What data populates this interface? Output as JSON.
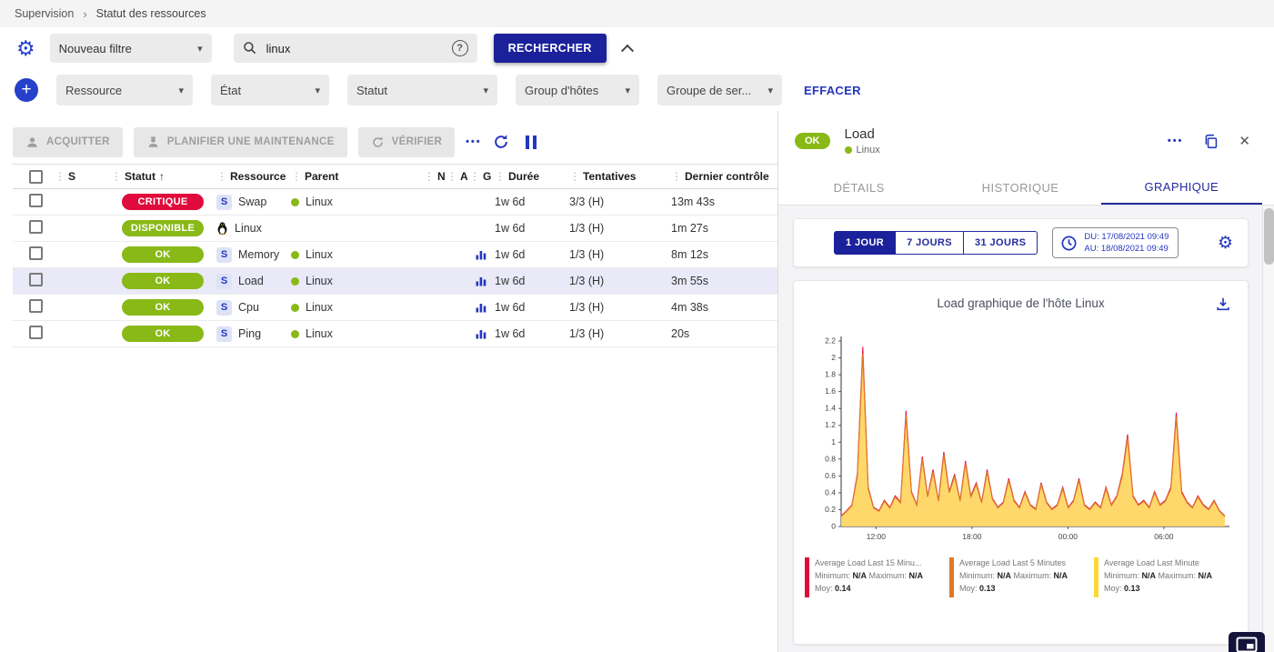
{
  "colors": {
    "primary": "#1b219b",
    "accent": "#2336c0",
    "ok_green": "#88b917",
    "critical_red": "#e00b3c",
    "selected_row": "#e9e9f7",
    "area_fill": "#ffd45c"
  },
  "icons": {
    "breadcrumb_chevron": "›",
    "gear": "⚙",
    "caret_down": "▾",
    "kebab": "⋮",
    "sort_up": "↑",
    "close": "✕",
    "more_dots": "•••",
    "help": "?",
    "plus": "+"
  },
  "breadcrumb": {
    "items": [
      "Supervision",
      "Statut des ressources"
    ]
  },
  "filters": {
    "filter_select": "Nouveau filtre",
    "search_value": "linux",
    "search_button": "RECHERCHER",
    "clear_button": "EFFACER",
    "criteria": [
      "Ressource",
      "État",
      "Statut",
      "Group d'hôtes",
      "Groupe de ser..."
    ]
  },
  "toolbar": {
    "acknowledge": "ACQUITTER",
    "maintenance": "PLANIFIER UNE MAINTENANCE",
    "check": "VÉRIFIER"
  },
  "table": {
    "headers": [
      "S",
      "Statut",
      "Ressource",
      "Parent",
      "N",
      "A",
      "G",
      "Durée",
      "Tentatives",
      "Dernier contrôle"
    ],
    "rows": [
      {
        "status": "CRITIQUE",
        "status_color": "#e00b3c",
        "kind": "service",
        "resource": "Swap",
        "parent": "Linux",
        "graph": false,
        "duration": "1w 6d",
        "tries": "3/3 (H)",
        "last_check": "13m 43s",
        "selected": false
      },
      {
        "status": "DISPONIBLE",
        "status_color": "#88b917",
        "kind": "host",
        "resource": "Linux",
        "parent": "",
        "graph": false,
        "duration": "1w 6d",
        "tries": "1/3 (H)",
        "last_check": "1m 27s",
        "selected": false
      },
      {
        "status": "OK",
        "status_color": "#88b917",
        "kind": "service",
        "resource": "Memory",
        "parent": "Linux",
        "graph": true,
        "duration": "1w 6d",
        "tries": "1/3 (H)",
        "last_check": "8m 12s",
        "selected": false
      },
      {
        "status": "OK",
        "status_color": "#88b917",
        "kind": "service",
        "resource": "Load",
        "parent": "Linux",
        "graph": true,
        "duration": "1w 6d",
        "tries": "1/3 (H)",
        "last_check": "3m 55s",
        "selected": true
      },
      {
        "status": "OK",
        "status_color": "#88b917",
        "kind": "service",
        "resource": "Cpu",
        "parent": "Linux",
        "graph": true,
        "duration": "1w 6d",
        "tries": "1/3 (H)",
        "last_check": "4m 38s",
        "selected": false
      },
      {
        "status": "OK",
        "status_color": "#88b917",
        "kind": "service",
        "resource": "Ping",
        "parent": "Linux",
        "graph": true,
        "duration": "1w 6d",
        "tries": "1/3 (H)",
        "last_check": "20s",
        "selected": false
      }
    ]
  },
  "panel": {
    "status": "OK",
    "title": "Load",
    "subtitle": "Linux",
    "tabs": [
      {
        "label": "DÉTAILS",
        "active": false
      },
      {
        "label": "HISTORIQUE",
        "active": false
      },
      {
        "label": "GRAPHIQUE",
        "active": true
      }
    ],
    "ranges": [
      {
        "label": "1 JOUR",
        "active": true
      },
      {
        "label": "7 JOURS",
        "active": false
      },
      {
        "label": "31 JOURS",
        "active": false
      }
    ],
    "date_from": "DU: 17/08/2021 09:49",
    "date_to": "AU: 18/08/2021 09:49"
  },
  "chart_data": {
    "type": "area",
    "title": "Load graphique de l'hôte Linux",
    "ylim": [
      0,
      2.2
    ],
    "y_tick_step": 0.2,
    "x_start": "17/08/2021 09:49",
    "x_domain_minutes": 1440,
    "x_ticks": [
      {
        "label": "12:00",
        "t": 131
      },
      {
        "label": "18:00",
        "t": 491
      },
      {
        "label": "00:00",
        "t": 851
      },
      {
        "label": "06:00",
        "t": 1211
      }
    ],
    "values": [
      0.12,
      0.18,
      0.25,
      0.6,
      2.05,
      0.45,
      0.22,
      0.18,
      0.3,
      0.22,
      0.35,
      0.28,
      1.32,
      0.4,
      0.25,
      0.8,
      0.35,
      0.65,
      0.3,
      0.85,
      0.4,
      0.6,
      0.3,
      0.75,
      0.35,
      0.5,
      0.28,
      0.65,
      0.32,
      0.22,
      0.28,
      0.55,
      0.3,
      0.22,
      0.4,
      0.25,
      0.2,
      0.5,
      0.28,
      0.2,
      0.25,
      0.45,
      0.22,
      0.3,
      0.55,
      0.25,
      0.2,
      0.28,
      0.22,
      0.45,
      0.25,
      0.35,
      0.6,
      1.05,
      0.35,
      0.25,
      0.3,
      0.22,
      0.4,
      0.25,
      0.3,
      0.45,
      1.3,
      0.4,
      0.28,
      0.22,
      0.35,
      0.25,
      0.2,
      0.3,
      0.18,
      0.12
    ],
    "legend_labels": {
      "min": "Minimum:",
      "max": "Maximum:",
      "avg": "Moy:"
    },
    "series": [
      {
        "name": "Average Load Last 15 Minu...",
        "color": "#e00b3c",
        "min": "N/A",
        "max": "N/A",
        "avg": "0.14"
      },
      {
        "name": "Average Load Last 5 Minutes",
        "color": "#df7926",
        "min": "N/A",
        "max": "N/A",
        "avg": "0.13"
      },
      {
        "name": "Average Load Last Minute",
        "color": "#fdd835",
        "min": "N/A",
        "max": "N/A",
        "avg": "0.13"
      }
    ]
  }
}
